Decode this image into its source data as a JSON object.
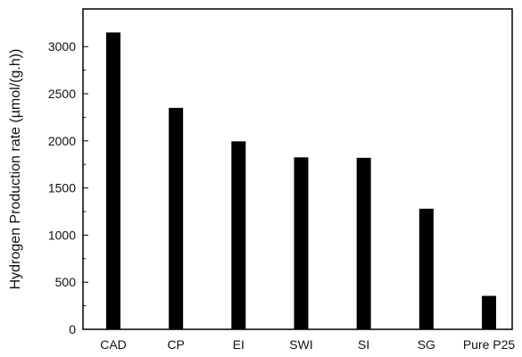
{
  "chart_data": {
    "type": "bar",
    "title": "",
    "xlabel": "",
    "ylabel": "Hydrogen Production rate (µmol/(g.h))",
    "categories": [
      "CAD",
      "CP",
      "EI",
      "SWI",
      "SI",
      "SG",
      "Pure P25"
    ],
    "values": [
      3150,
      2350,
      1995,
      1825,
      1820,
      1280,
      355
    ],
    "ylim": [
      0,
      3400
    ],
    "yticks": [
      0,
      500,
      1000,
      1500,
      2000,
      2500,
      3000
    ],
    "ytick_labels": [
      "0",
      "500",
      "1000",
      "1500",
      "2000",
      "2500",
      "3000"
    ],
    "bar_color": "#000000",
    "grid": false,
    "legend": "none"
  }
}
